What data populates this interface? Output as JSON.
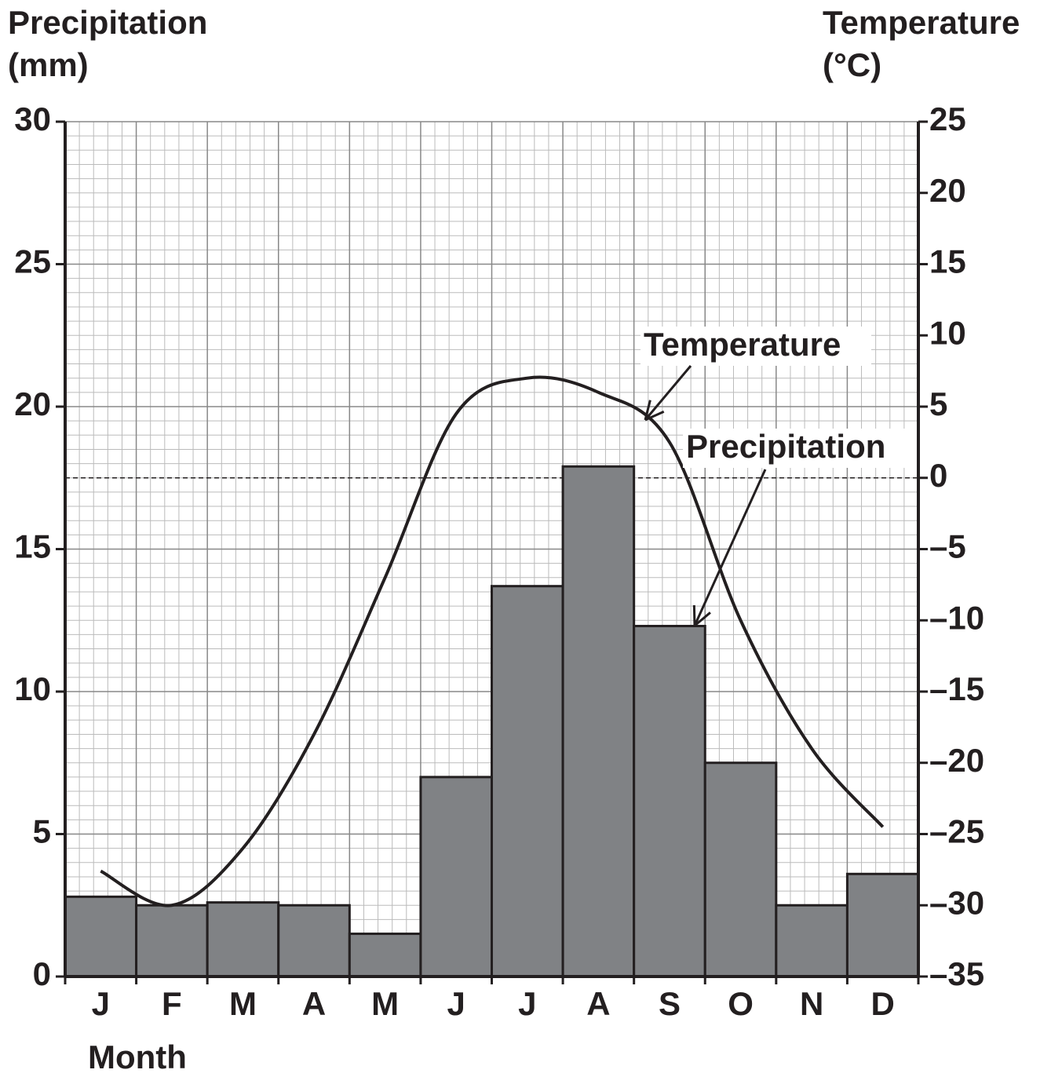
{
  "chart_data": {
    "type": "bar",
    "y_label": [
      "Precipitation",
      "(mm)"
    ],
    "y2_label": [
      "Temperature",
      "(°C)"
    ],
    "x_label": "Month",
    "categories": [
      "J",
      "F",
      "M",
      "A",
      "M",
      "J",
      "J",
      "A",
      "S",
      "O",
      "N",
      "D"
    ],
    "series": [
      {
        "name": "Precipitation",
        "type": "bar",
        "color": "#808285",
        "values": [
          2.8,
          2.5,
          2.6,
          2.5,
          1.5,
          7.0,
          13.7,
          17.9,
          12.3,
          7.5,
          2.5,
          3.6
        ]
      },
      {
        "name": "Temperature",
        "type": "line",
        "axis": "y2",
        "color": "#231f20",
        "values": [
          -27.6,
          -30,
          -26,
          -18,
          -7,
          4.5,
          7,
          6,
          2.5,
          -10,
          -19,
          -24.5
        ]
      }
    ],
    "ylim": [
      0,
      30
    ],
    "yticks": [
      0,
      5,
      10,
      15,
      20,
      25,
      30
    ],
    "y2lim": [
      -35,
      25
    ],
    "y2ticks": [
      {
        "value": -35,
        "label": "–35"
      },
      {
        "value": -30,
        "label": "–30"
      },
      {
        "value": -25,
        "label": "–25"
      },
      {
        "value": -20,
        "label": "–20"
      },
      {
        "value": -15,
        "label": "–15"
      },
      {
        "value": -10,
        "label": "–10"
      },
      {
        "value": -5,
        "label": "–5"
      },
      0,
      5,
      10,
      15,
      20,
      25
    ],
    "y2_reference_line": 0,
    "grid": true
  }
}
